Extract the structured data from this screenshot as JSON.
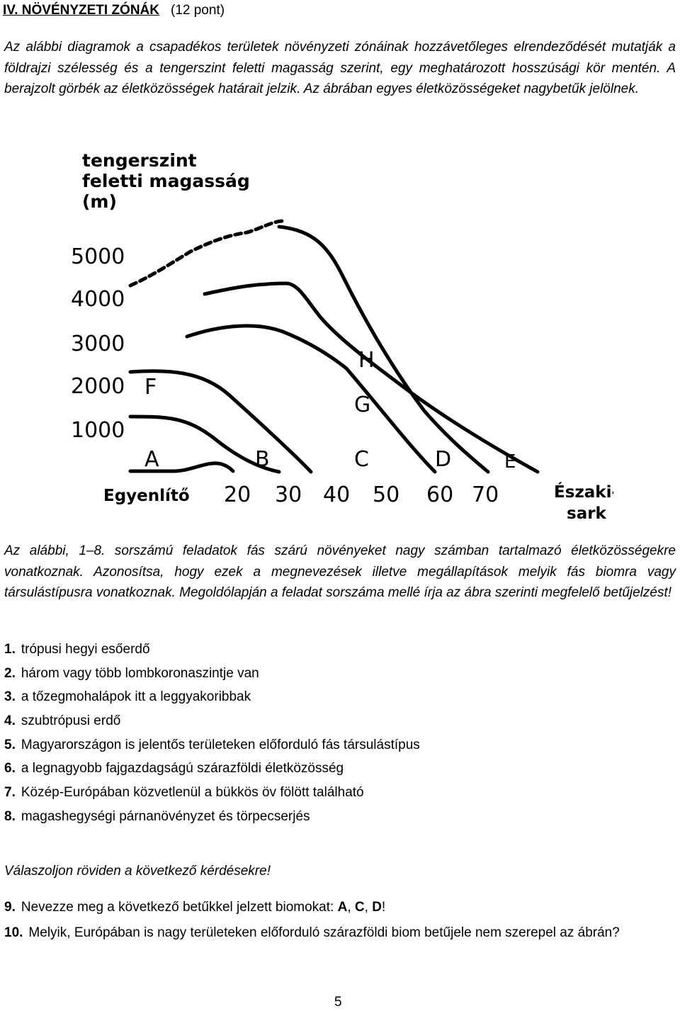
{
  "section": {
    "title": "IV. NÖVÉNYZETI ZÓNÁK",
    "points": "(12 pont)"
  },
  "intro": "Az alábbi diagramok a csapadékos területek növényzeti zónáinak hozzávetőleges elrendeződését mutatják a földrajzi szélesség és a tengerszint feletti magasság szerint, egy meghatározott hosszúsági kör mentén. A berajzolt görbék az életközösségek határait jelzik. Az ábrában egyes életközösségeket nagybetűk jelölnek.",
  "figure": {
    "ylabel_lines": [
      "tengerszint",
      "feletti magasság",
      "(m)"
    ],
    "yticks": [
      "5000",
      "4000",
      "3000",
      "2000",
      "1000"
    ],
    "xtick_start": "Egyenlítő",
    "xticks": [
      "20",
      "30",
      "40",
      "50",
      "60",
      "70"
    ],
    "xtick_end_lines": [
      "Északi-",
      "sark"
    ],
    "zone_letters": {
      "A": "A",
      "B": "B",
      "C": "C",
      "D": "D",
      "E": "E",
      "F": "F",
      "G": "G",
      "H": "H"
    }
  },
  "instructions": {
    "line1": "Az alábbi, 1–8. sorszámú feladatok fás szárú növényeket nagy számban tartalmazó életközösségekre vonatkoznak.",
    "line2": "Azonosítsa, hogy ezek a megnevezések illetve megállapítások melyik fás biomra vagy társulástípusra vonatkoznak. Megoldólapján a feladat sorszáma mellé írja az ábra szerinti megfelelő betűjelzést!"
  },
  "items": [
    {
      "num": "1.",
      "text": "trópusi hegyi esőerdő"
    },
    {
      "num": "2.",
      "text": "három vagy több lombkoronaszintje van"
    },
    {
      "num": "3.",
      "text": "a tőzegmohalápok itt a leggyakoribbak"
    },
    {
      "num": "4.",
      "text": "szubtrópusi erdő"
    },
    {
      "num": "5.",
      "text": "Magyarországon is jelentős területeken előforduló fás társulástípus"
    },
    {
      "num": "6.",
      "text": "a legnagyobb fajgazdagságú szárazföldi életközösség"
    },
    {
      "num": "7.",
      "text": "Közép-Európában közvetlenül a bükkös öv fölött található"
    },
    {
      "num": "8.",
      "text": "magashegységi párnanövényzet és törpecserjés"
    }
  ],
  "short_answer_prompt": "Válaszoljon röviden a következő kérdésekre!",
  "q9": {
    "num": "9.",
    "text": "Nevezze meg a következő betűkkel jelzett biomokat: ",
    "a": "A",
    "sep1": ", ",
    "c": "C",
    "sep2": ", ",
    "d": "D",
    "end": "!"
  },
  "q10": {
    "num": "10.",
    "text": "Melyik, Európában is nagy területeken előforduló szárazföldi biom betűjele nem szerepel az ábrán?"
  },
  "page_number": "5"
}
